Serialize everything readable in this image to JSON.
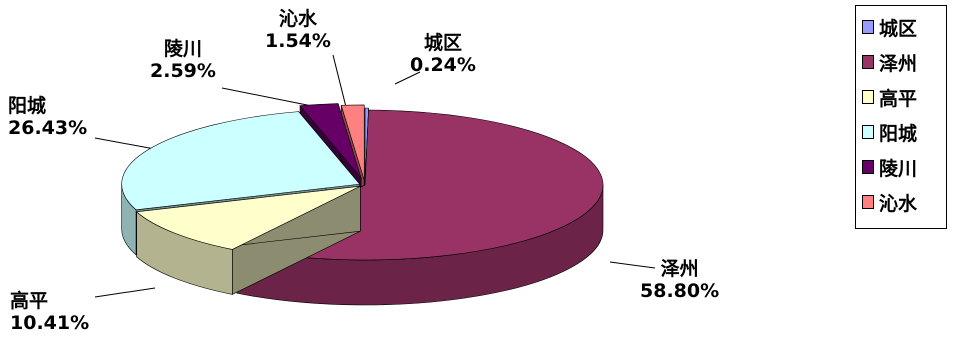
{
  "chart_data": {
    "type": "pie",
    "title": "",
    "series": [
      {
        "label": "城区",
        "value": 0.24,
        "value_label": "0.24%",
        "color": "#9999FF"
      },
      {
        "label": "泽州",
        "value": 58.8,
        "value_label": "58.80%",
        "color": "#993366"
      },
      {
        "label": "高平",
        "value": 10.41,
        "value_label": "10.41%",
        "color": "#FFFFCC"
      },
      {
        "label": "阳城",
        "value": 26.43,
        "value_label": "26.43%",
        "color": "#CCFFFF"
      },
      {
        "label": "陵川",
        "value": 2.59,
        "value_label": "2.59%",
        "color": "#660066"
      },
      {
        "label": "沁水",
        "value": 1.54,
        "value_label": "1.54%",
        "color": "#FF8080"
      }
    ],
    "legend_position": "right",
    "style": "3d-exploded"
  }
}
